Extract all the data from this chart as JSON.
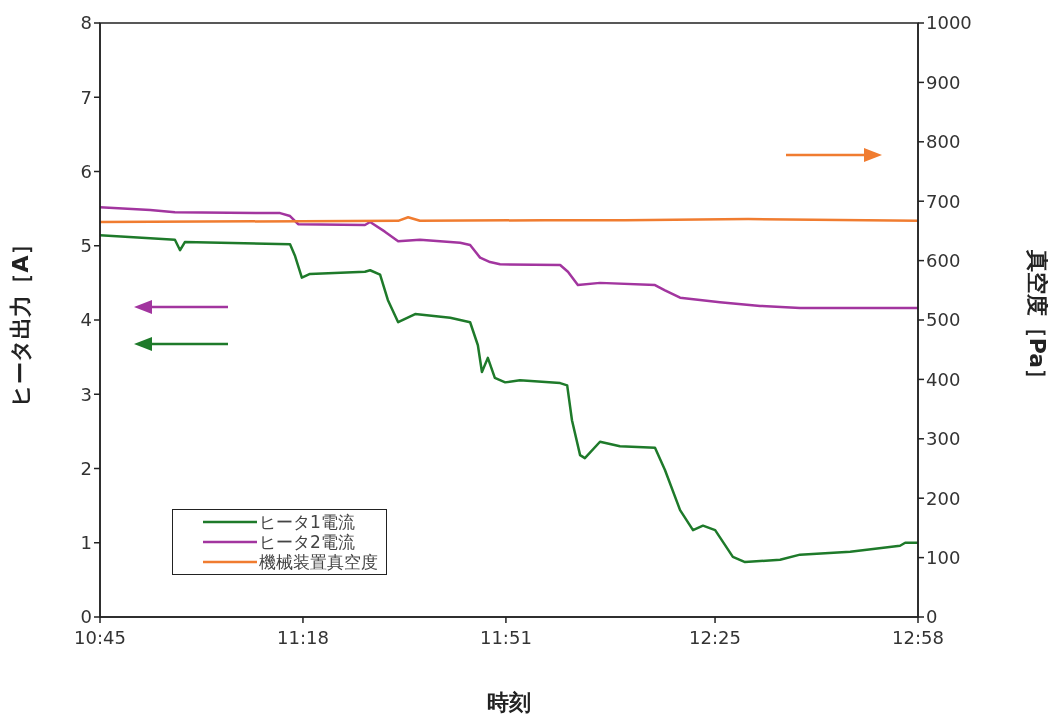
{
  "chart_data": {
    "type": "line",
    "xlabel": "時刻",
    "ylabel": "ヒータ出力［A］",
    "y2label": "真空度［Pa］",
    "xlim": [
      10.75,
      12.9667
    ],
    "xticks": [
      {
        "value": 10.75,
        "label": "10:45"
      },
      {
        "value": 11.3,
        "label": "11:18"
      },
      {
        "value": 11.85,
        "label": "11:51"
      },
      {
        "value": 12.4167,
        "label": "12:25"
      },
      {
        "value": 12.9667,
        "label": "12:58"
      }
    ],
    "ylim": [
      0,
      8
    ],
    "yticks": [
      0,
      1,
      2,
      3,
      4,
      5,
      6,
      7,
      8
    ],
    "y2lim": [
      0,
      1000
    ],
    "y2ticks": [
      0,
      100,
      200,
      300,
      400,
      500,
      600,
      700,
      800,
      900,
      1000
    ],
    "grid": false,
    "legend": "bottom left",
    "marker": "none",
    "line_style": "solid",
    "series": [
      {
        "name": "ヒータ1電流",
        "color": "#1e7a2a",
        "x": [
          10.75,
          10.886,
          10.953,
          10.967,
          10.98,
          11.265,
          11.278,
          11.297,
          11.319,
          11.468,
          11.482,
          11.509,
          11.53,
          11.558,
          11.604,
          11.699,
          11.753,
          11.774,
          11.785,
          11.801,
          11.82,
          11.848,
          11.888,
          11.997,
          12.016,
          12.029,
          12.051,
          12.064,
          12.105,
          12.159,
          12.254,
          12.281,
          12.322,
          12.357,
          12.384,
          12.417,
          12.465,
          12.498,
          12.593,
          12.647,
          12.783,
          12.918,
          12.932,
          12.9667
        ],
        "values": [
          5.14,
          5.1,
          5.08,
          4.94,
          5.05,
          5.02,
          4.87,
          4.57,
          4.62,
          4.65,
          4.67,
          4.61,
          4.27,
          3.97,
          4.08,
          4.03,
          3.97,
          3.66,
          3.3,
          3.49,
          3.22,
          3.16,
          3.19,
          3.15,
          3.12,
          2.65,
          2.18,
          2.14,
          2.36,
          2.3,
          2.28,
          1.98,
          1.44,
          1.17,
          1.23,
          1.17,
          0.81,
          0.74,
          0.77,
          0.84,
          0.88,
          0.96,
          1.0,
          1.0
        ]
      },
      {
        "name": "ヒータ2電流",
        "color": "#a2359f",
        "x": [
          10.75,
          10.886,
          10.953,
          11.238,
          11.265,
          11.287,
          11.468,
          11.482,
          11.522,
          11.558,
          11.617,
          11.726,
          11.753,
          11.78,
          11.807,
          11.834,
          11.997,
          12.018,
          12.045,
          12.105,
          12.254,
          12.281,
          12.322,
          12.43,
          12.539,
          12.647,
          12.9667
        ],
        "values": [
          5.52,
          5.48,
          5.45,
          5.44,
          5.4,
          5.29,
          5.28,
          5.32,
          5.19,
          5.06,
          5.08,
          5.04,
          5.01,
          4.84,
          4.78,
          4.75,
          4.74,
          4.65,
          4.47,
          4.5,
          4.47,
          4.4,
          4.3,
          4.24,
          4.19,
          4.16,
          4.16
        ]
      },
      {
        "name": "機械装置真空度",
        "color": "#f07c30",
        "axis": "y2",
        "x": [
          10.75,
          11.558,
          11.585,
          11.617,
          11.956,
          12.173,
          12.506,
          12.9667
        ],
        "values": [
          665,
          667,
          673,
          667,
          668,
          668,
          670,
          667
        ]
      }
    ]
  }
}
